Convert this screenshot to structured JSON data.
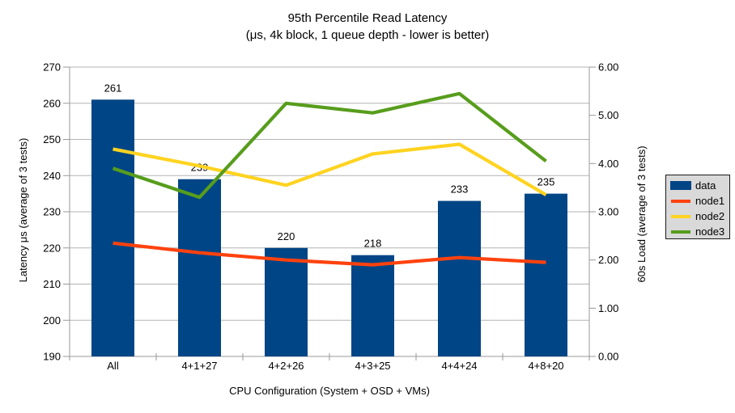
{
  "title": "95th Percentile Read Latency",
  "subtitle": "(μs, 4k block, 1 queue depth - lower is better)",
  "chart_data": {
    "type": "bar",
    "subtype": "bar+line dual-axis",
    "categories": [
      "All",
      "4+1+27",
      "4+2+26",
      "4+3+25",
      "4+4+24",
      "4+8+20"
    ],
    "series": [
      {
        "name": "data",
        "type": "bar",
        "axis": "left",
        "color": "#004586",
        "values": [
          261,
          239,
          220,
          218,
          233,
          235
        ],
        "value_labels": [
          "261",
          "239",
          "220",
          "218",
          "233",
          "235"
        ]
      },
      {
        "name": "node1",
        "type": "line",
        "axis": "right",
        "color": "#ff420e",
        "values": [
          2.35,
          2.15,
          2.0,
          1.9,
          2.05,
          1.95
        ]
      },
      {
        "name": "node2",
        "type": "line",
        "axis": "right",
        "color": "#ffd320",
        "values": [
          4.3,
          3.95,
          3.55,
          4.2,
          4.4,
          3.35
        ]
      },
      {
        "name": "node3",
        "type": "line",
        "axis": "right",
        "color": "#579d1c",
        "values": [
          3.9,
          3.3,
          5.25,
          5.05,
          5.45,
          4.05
        ]
      }
    ],
    "left_axis": {
      "title": "Latency μs (average of 3 tests)",
      "min": 190,
      "max": 270,
      "step": 10,
      "tick_labels": [
        "190",
        "200",
        "210",
        "220",
        "230",
        "240",
        "250",
        "260",
        "270"
      ]
    },
    "right_axis": {
      "title": "60s Load (average of 3 tests)",
      "min": 0,
      "max": 6,
      "step": 1,
      "tick_labels": [
        "0.00",
        "1.00",
        "2.00",
        "3.00",
        "4.00",
        "5.00",
        "6.00"
      ]
    },
    "x_axis": {
      "title": "CPU Configuration (System + OSD + VMs)"
    },
    "grid": true,
    "legend_position": "right"
  },
  "colors": {
    "background": "#ffffff",
    "gridline": "#b3b3b3",
    "axis_line": "#999999",
    "text": "#000000",
    "legend_background": "#d9d9d9",
    "legend_border": "#1a1a1a"
  }
}
